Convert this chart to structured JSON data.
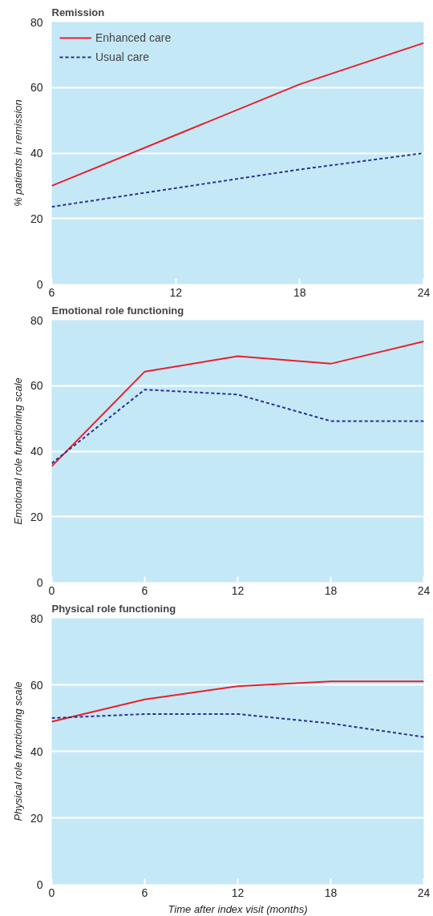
{
  "chart_data": [
    {
      "type": "line",
      "title": "Remission",
      "ylabel": "% patients in remission",
      "x": [
        6,
        12,
        18,
        24
      ],
      "xlim": [
        6,
        24
      ],
      "xticks": [
        6,
        12,
        18,
        24
      ],
      "ylim": [
        0,
        80
      ],
      "yticks": [
        0,
        20,
        40,
        60,
        80
      ],
      "grid": "y",
      "legend": "top left",
      "series": [
        {
          "name": "Enhanced care",
          "color": "#e8202a",
          "line_style": "solid",
          "values": [
            30,
            45.5,
            61,
            73.6
          ]
        },
        {
          "name": "Usual care",
          "color": "#2b2f8f",
          "line_style": "dashed",
          "values": [
            23.6,
            29.3,
            35,
            40
          ]
        }
      ]
    },
    {
      "type": "line",
      "title": "Emotional role functioning",
      "ylabel": "Emotional role functioning scale",
      "x": [
        0,
        6,
        12,
        18,
        24
      ],
      "xlim": [
        0,
        24
      ],
      "xticks": [
        0,
        6,
        12,
        18,
        24
      ],
      "ylim": [
        0,
        80
      ],
      "yticks": [
        0,
        20,
        40,
        60,
        80
      ],
      "grid": "y",
      "series": [
        {
          "color": "#e8202a",
          "line_style": "solid",
          "values": [
            35.4,
            64.3,
            69,
            66.7,
            73.5
          ]
        },
        {
          "color": "#2b2f8f",
          "line_style": "dashed",
          "values": [
            36.3,
            58.8,
            57.3,
            49.2,
            49.2
          ]
        }
      ]
    },
    {
      "type": "line",
      "title": "Physical role functioning",
      "ylabel": "Physical role functioning scale",
      "xlabel": "Time after index visit (months)",
      "x": [
        0,
        6,
        12,
        18,
        24
      ],
      "xlim": [
        0,
        24
      ],
      "xticks": [
        0,
        6,
        12,
        18,
        24
      ],
      "ylim": [
        0,
        80
      ],
      "yticks": [
        0,
        20,
        40,
        60,
        80
      ],
      "grid": "y",
      "series": [
        {
          "color": "#e8202a",
          "line_style": "solid",
          "values": [
            48.9,
            55.6,
            59.6,
            61,
            61
          ]
        },
        {
          "color": "#2b2f8f",
          "line_style": "dashed",
          "values": [
            50,
            51.2,
            51.2,
            48.4,
            44.3
          ]
        }
      ]
    }
  ]
}
